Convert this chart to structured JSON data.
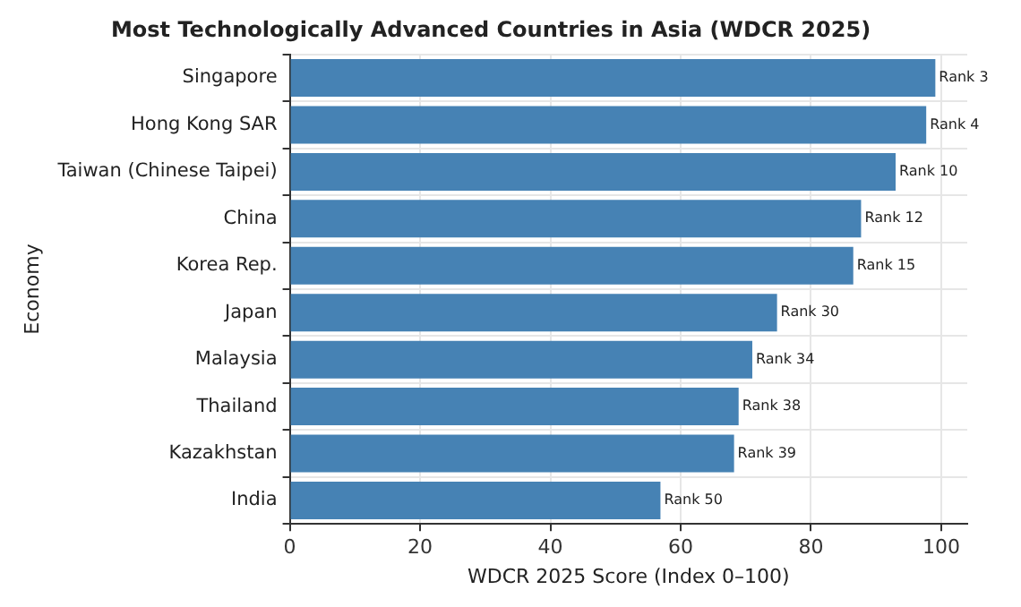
{
  "chart_data": {
    "type": "bar",
    "orientation": "horizontal",
    "title": "Most Technologically Advanced Countries in Asia (WDCR 2025)",
    "xlabel": "WDCR 2025 Score (Index 0–100)",
    "ylabel": "Economy",
    "categories": [
      "Singapore",
      "Hong Kong SAR",
      "Taiwan (Chinese Taipei)",
      "China",
      "Korea Rep.",
      "Japan",
      "Malaysia",
      "Thailand",
      "Kazakhstan",
      "India"
    ],
    "values": [
      99.1,
      97.7,
      93.0,
      87.7,
      86.5,
      74.8,
      71.0,
      68.9,
      68.2,
      56.9
    ],
    "value_labels": [
      "Rank 3",
      "Rank 4",
      "Rank 10",
      "Rank 12",
      "Rank 15",
      "Rank 30",
      "Rank 34",
      "Rank 38",
      "Rank 39",
      "Rank 50"
    ],
    "color": "#4682b4",
    "xlim": [
      0,
      104
    ],
    "xticks": [
      0,
      20,
      40,
      60,
      80,
      100
    ],
    "grid": true
  }
}
